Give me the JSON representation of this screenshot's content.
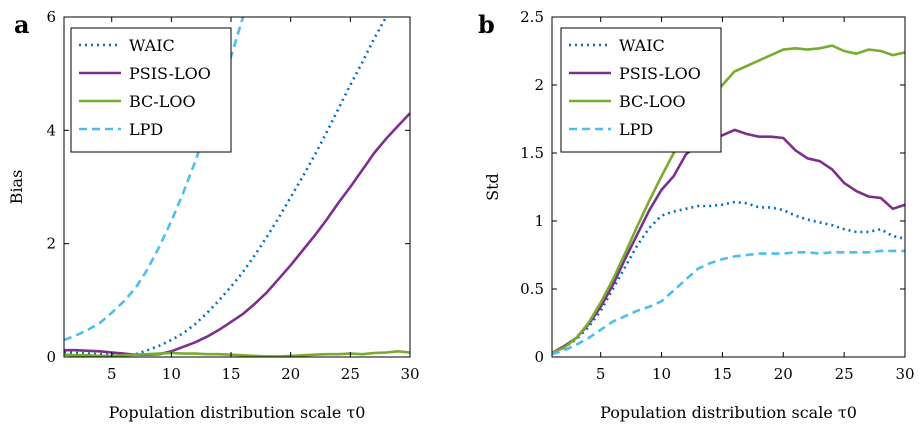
{
  "chart_data": [
    {
      "type": "line",
      "panel_label": "a",
      "xlabel": "Population distribution scale τ0",
      "ylabel": "Bias",
      "xlim": [
        1,
        30
      ],
      "ylim": [
        0,
        6
      ],
      "xticks": [
        5,
        10,
        15,
        20,
        25,
        30
      ],
      "yticks": [
        0,
        2,
        4,
        6
      ],
      "grid": false,
      "legend_position": "top-left",
      "series": [
        {
          "name": "WAIC",
          "color": "#0072bd",
          "style": "dotted",
          "x": [
            1,
            2,
            3,
            4,
            5,
            6,
            7,
            8,
            9,
            10,
            11,
            12,
            13,
            14,
            15,
            16,
            17,
            18,
            19,
            20,
            21,
            22,
            23,
            24,
            25,
            26,
            27,
            28
          ],
          "y": [
            0.08,
            0.07,
            0.06,
            0.05,
            0.04,
            0.04,
            0.05,
            0.12,
            0.2,
            0.3,
            0.42,
            0.58,
            0.78,
            1.0,
            1.24,
            1.5,
            1.8,
            2.12,
            2.46,
            2.82,
            3.18,
            3.56,
            3.96,
            4.38,
            4.8,
            5.2,
            5.62,
            6.0
          ]
        },
        {
          "name": "PSIS-LOO",
          "color": "#7e2f8e",
          "style": "solid",
          "x": [
            1,
            2,
            3,
            4,
            5,
            6,
            7,
            8,
            9,
            10,
            11,
            12,
            13,
            14,
            15,
            16,
            17,
            18,
            19,
            20,
            21,
            22,
            23,
            24,
            25,
            26,
            27,
            28,
            29,
            30
          ],
          "y": [
            0.12,
            0.12,
            0.11,
            0.1,
            0.08,
            0.06,
            0.04,
            0.04,
            0.05,
            0.1,
            0.18,
            0.26,
            0.36,
            0.48,
            0.62,
            0.76,
            0.94,
            1.14,
            1.38,
            1.62,
            1.88,
            2.14,
            2.42,
            2.72,
            3.0,
            3.3,
            3.6,
            3.85,
            4.08,
            4.3
          ]
        },
        {
          "name": "BC-LOO",
          "color": "#77ac30",
          "style": "solid",
          "x": [
            1,
            2,
            3,
            4,
            5,
            6,
            7,
            8,
            9,
            10,
            11,
            12,
            13,
            14,
            15,
            16,
            17,
            18,
            19,
            20,
            21,
            22,
            23,
            24,
            25,
            26,
            27,
            28,
            29,
            30
          ],
          "y": [
            0.04,
            0.03,
            0.03,
            0.02,
            0.02,
            0.03,
            0.04,
            0.05,
            0.06,
            0.07,
            0.06,
            0.06,
            0.05,
            0.05,
            0.04,
            0.03,
            0.02,
            0.01,
            0.01,
            0.02,
            0.03,
            0.04,
            0.05,
            0.05,
            0.06,
            0.05,
            0.07,
            0.08,
            0.1,
            0.08
          ]
        },
        {
          "name": "LPD",
          "color": "#4dbeee",
          "style": "dashed",
          "x": [
            1,
            2,
            3,
            4,
            5,
            6,
            7,
            8,
            9,
            10,
            11,
            12,
            13,
            14,
            15,
            16
          ],
          "y": [
            0.3,
            0.38,
            0.48,
            0.6,
            0.78,
            0.98,
            1.22,
            1.55,
            1.95,
            2.4,
            2.9,
            3.45,
            4.05,
            4.65,
            5.3,
            6.0
          ]
        }
      ]
    },
    {
      "type": "line",
      "panel_label": "b",
      "xlabel": "Population distribution scale τ0",
      "ylabel": "Std",
      "xlim": [
        1,
        30
      ],
      "ylim": [
        0,
        2.5
      ],
      "xticks": [
        5,
        10,
        15,
        20,
        25,
        30
      ],
      "yticks": [
        0,
        0.5,
        1,
        1.5,
        2,
        2.5
      ],
      "grid": false,
      "legend_position": "top-left",
      "series": [
        {
          "name": "WAIC",
          "color": "#0072bd",
          "style": "dotted",
          "x": [
            1,
            2,
            3,
            4,
            5,
            6,
            7,
            8,
            9,
            10,
            11,
            12,
            13,
            14,
            15,
            16,
            17,
            18,
            19,
            20,
            21,
            22,
            23,
            24,
            25,
            26,
            27,
            28,
            29,
            30
          ],
          "y": [
            0.03,
            0.07,
            0.13,
            0.22,
            0.34,
            0.5,
            0.66,
            0.82,
            0.95,
            1.04,
            1.07,
            1.09,
            1.11,
            1.11,
            1.12,
            1.14,
            1.13,
            1.1,
            1.1,
            1.08,
            1.04,
            1.01,
            0.99,
            0.97,
            0.94,
            0.92,
            0.92,
            0.94,
            0.89,
            0.87
          ]
        },
        {
          "name": "PSIS-LOO",
          "color": "#7e2f8e",
          "style": "solid",
          "x": [
            1,
            2,
            3,
            4,
            5,
            6,
            7,
            8,
            9,
            10,
            11,
            12,
            13,
            14,
            15,
            16,
            17,
            18,
            19,
            20,
            21,
            22,
            23,
            24,
            25,
            26,
            27,
            28,
            29,
            30
          ],
          "y": [
            0.03,
            0.08,
            0.14,
            0.24,
            0.37,
            0.53,
            0.72,
            0.9,
            1.08,
            1.23,
            1.33,
            1.49,
            1.56,
            1.6,
            1.63,
            1.67,
            1.64,
            1.62,
            1.62,
            1.61,
            1.52,
            1.46,
            1.44,
            1.38,
            1.28,
            1.22,
            1.18,
            1.17,
            1.09,
            1.12
          ]
        },
        {
          "name": "BC-LOO",
          "color": "#77ac30",
          "style": "solid",
          "x": [
            1,
            2,
            3,
            4,
            5,
            6,
            7,
            8,
            9,
            10,
            11,
            12,
            13,
            14,
            15,
            16,
            17,
            18,
            19,
            20,
            21,
            22,
            23,
            24,
            25,
            26,
            27,
            28,
            29,
            30
          ],
          "y": [
            0.03,
            0.07,
            0.14,
            0.25,
            0.4,
            0.57,
            0.76,
            0.96,
            1.15,
            1.33,
            1.5,
            1.65,
            1.78,
            1.9,
            2.0,
            2.1,
            2.14,
            2.18,
            2.22,
            2.26,
            2.27,
            2.26,
            2.27,
            2.29,
            2.25,
            2.23,
            2.26,
            2.25,
            2.22,
            2.24
          ]
        },
        {
          "name": "LPD",
          "color": "#4dbeee",
          "style": "dashed",
          "x": [
            1,
            2,
            3,
            4,
            5,
            6,
            7,
            8,
            9,
            10,
            11,
            12,
            13,
            14,
            15,
            16,
            17,
            18,
            19,
            20,
            21,
            22,
            23,
            24,
            25,
            26,
            27,
            28,
            29,
            30
          ],
          "y": [
            0.02,
            0.05,
            0.09,
            0.14,
            0.2,
            0.26,
            0.3,
            0.34,
            0.37,
            0.41,
            0.49,
            0.57,
            0.65,
            0.69,
            0.72,
            0.74,
            0.75,
            0.76,
            0.76,
            0.76,
            0.77,
            0.77,
            0.76,
            0.77,
            0.77,
            0.77,
            0.77,
            0.78,
            0.78,
            0.78
          ]
        }
      ]
    }
  ]
}
